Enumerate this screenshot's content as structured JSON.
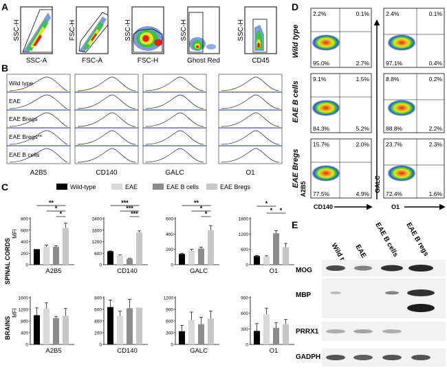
{
  "panel_labels": {
    "a": "A",
    "b": "B",
    "c": "C",
    "d": "D",
    "e": "E"
  },
  "panel_a": {
    "plots": [
      {
        "y": "SSC-H",
        "x": "SSC-A"
      },
      {
        "y": "FSC-H",
        "x": "FSC-A"
      },
      {
        "y": "SSC-H",
        "x": "FSC-H"
      },
      {
        "y": "SSC-H",
        "x": "Ghost Red"
      },
      {
        "y": "SSC-H",
        "x": "CD45"
      }
    ]
  },
  "panel_b": {
    "rows": [
      "Wild type",
      "EAE",
      "EAE B<sub>regs</sub>",
      "EAE B<sub>regs</sub><sup>**</sup>",
      "EAE B cells"
    ],
    "rows_plain": [
      "Wild type",
      "EAE",
      "EAE Bregs",
      "EAE Bregs**",
      "EAE B cells"
    ],
    "markers": [
      "A2B5",
      "CD140",
      "GALC",
      "O1"
    ]
  },
  "panel_c": {
    "legend": [
      {
        "label": "Wild-type",
        "color": "#000000"
      },
      {
        "label": "EAE",
        "color": "#d9d9d9"
      },
      {
        "label": "EAE B cells",
        "color": "#8c8c8c"
      },
      {
        "label": "EAE Bregs",
        "color": "#c8c8c8"
      }
    ],
    "row_labels": [
      "SPINAL CORDS",
      "BRAINS"
    ],
    "unit": "MFI"
  },
  "chart_data": [
    {
      "type": "bar",
      "title": "Spinal cords A2B5",
      "xlabel": "A2B5",
      "ylabel": "MFI",
      "categories": [
        "Wild-type",
        "EAE",
        "EAE B cells",
        "EAE Bregs"
      ],
      "values": [
        270,
        310,
        310,
        640
      ],
      "errors": [
        0,
        30,
        20,
        80
      ],
      "yticks": [
        0,
        200,
        400,
        600,
        800
      ],
      "ylim": [
        0,
        800
      ],
      "sig": [
        "**",
        "*",
        "*"
      ]
    },
    {
      "type": "bar",
      "title": "Spinal cords CD140",
      "xlabel": "CD140",
      "ylabel": "MFI",
      "categories": [
        "Wild-type",
        "EAE",
        "EAE B cells",
        "EAE Bregs"
      ],
      "values": [
        700,
        480,
        310,
        1680
      ],
      "errors": [
        20,
        30,
        20,
        80
      ],
      "yticks": [
        0,
        600,
        1200,
        1800,
        2400
      ],
      "ylim": [
        0,
        2400
      ],
      "sig": [
        "***",
        "***",
        "***"
      ]
    },
    {
      "type": "bar",
      "title": "Spinal cords GALC",
      "xlabel": "GALC",
      "ylabel": "MFI",
      "categories": [
        "Wild-type",
        "EAE",
        "EAE B cells",
        "EAE Bregs"
      ],
      "values": [
        140,
        180,
        210,
        450
      ],
      "errors": [
        10,
        20,
        20,
        60
      ],
      "yticks": [
        0,
        200,
        400,
        600
      ],
      "ylim": [
        0,
        600
      ],
      "sig": [
        "**",
        "*",
        "*"
      ]
    },
    {
      "type": "bar",
      "title": "Spinal cords O1",
      "xlabel": "O1",
      "ylabel": "MFI",
      "categories": [
        "Wild-type",
        "EAE",
        "EAE B cells",
        "EAE Bregs"
      ],
      "values": [
        340,
        320,
        1230,
        680
      ],
      "errors": [
        20,
        30,
        100,
        150
      ],
      "yticks": [
        0,
        600,
        1200,
        1800
      ],
      "ylim": [
        0,
        1800
      ],
      "sig": [
        "*",
        "*",
        "*"
      ]
    },
    {
      "type": "bar",
      "title": "Brains A2B5",
      "xlabel": "A2B5",
      "ylabel": "MFI",
      "categories": [
        "Wild-type",
        "EAE",
        "EAE B cells",
        "EAE Bregs"
      ],
      "values": [
        1000,
        1230,
        900,
        980
      ],
      "errors": [
        250,
        200,
        60,
        250
      ],
      "yticks": [
        0,
        400,
        800,
        1200,
        1600
      ],
      "ylim": [
        0,
        1600
      ],
      "sig": []
    },
    {
      "type": "bar",
      "title": "Brains CD140",
      "xlabel": "CD140",
      "ylabel": "MFI",
      "categories": [
        "Wild-type",
        "EAE",
        "EAE B cells",
        "EAE Bregs"
      ],
      "values": [
        640,
        490,
        620,
        630
      ],
      "errors": [
        120,
        80,
        150,
        0
      ],
      "yticks": [
        0,
        200,
        400,
        600,
        800
      ],
      "ylim": [
        0,
        800
      ],
      "sig": []
    },
    {
      "type": "bar",
      "title": "Brains GALC",
      "xlabel": "GALC",
      "ylabel": "MFI",
      "categories": [
        "Wild-type",
        "EAE",
        "EAE B cells",
        "EAE Bregs"
      ],
      "values": [
        340,
        630,
        520,
        660
      ],
      "errors": [
        150,
        200,
        180,
        200
      ],
      "yticks": [
        0,
        300,
        600,
        900,
        1200
      ],
      "ylim": [
        0,
        1200
      ],
      "sig": []
    },
    {
      "type": "bar",
      "title": "Brains O1",
      "xlabel": "O1",
      "ylabel": "MFI",
      "categories": [
        "Wild-type",
        "EAE",
        "EAE B cells",
        "EAE Bregs"
      ],
      "values": [
        260,
        580,
        320,
        390
      ],
      "errors": [
        140,
        120,
        100,
        90
      ],
      "yticks": [
        0,
        300,
        600,
        900
      ],
      "ylim": [
        0,
        900
      ],
      "sig": []
    }
  ],
  "panel_d": {
    "row_labels": [
      "Wild type",
      "EAE B cells",
      "EAE B<tspan baseline-shift=\"sub\" font-size=\"8\">regs</tspan>"
    ],
    "row_labels_plain": [
      "Wild type",
      "EAE B cells",
      "EAE Bregs"
    ],
    "y_axes": [
      "A2B5",
      "GALC"
    ],
    "x_axes": [
      "CD140",
      "O1"
    ],
    "left": [
      {
        "ul": "2.2%",
        "ur": "0.1%",
        "ll": "95.0%",
        "lr": "2.7%"
      },
      {
        "ul": "9.1%",
        "ur": "1.5%",
        "ll": "84.3%",
        "lr": "5.2%"
      },
      {
        "ul": "15.7%",
        "ur": "2.0%",
        "ll": "77.5%",
        "lr": "4.9%"
      }
    ],
    "right": [
      {
        "ul": "2.4%",
        "ur": "0.1%",
        "ll": "97.1%",
        "lr": "0.4%"
      },
      {
        "ul": "8.8%",
        "ur": "0.2%",
        "ll": "88.8%",
        "lr": "2.2%"
      },
      {
        "ul": "23.7%",
        "ur": "2.3%",
        "ll": "72.4%",
        "lr": "1.6%"
      }
    ]
  },
  "panel_e": {
    "lanes": [
      "Wild type",
      "EAE",
      "EAE B cells",
      "EAE B regs"
    ],
    "blots": [
      "MOG",
      "MBP",
      "PRRX1",
      "GADPH"
    ]
  }
}
